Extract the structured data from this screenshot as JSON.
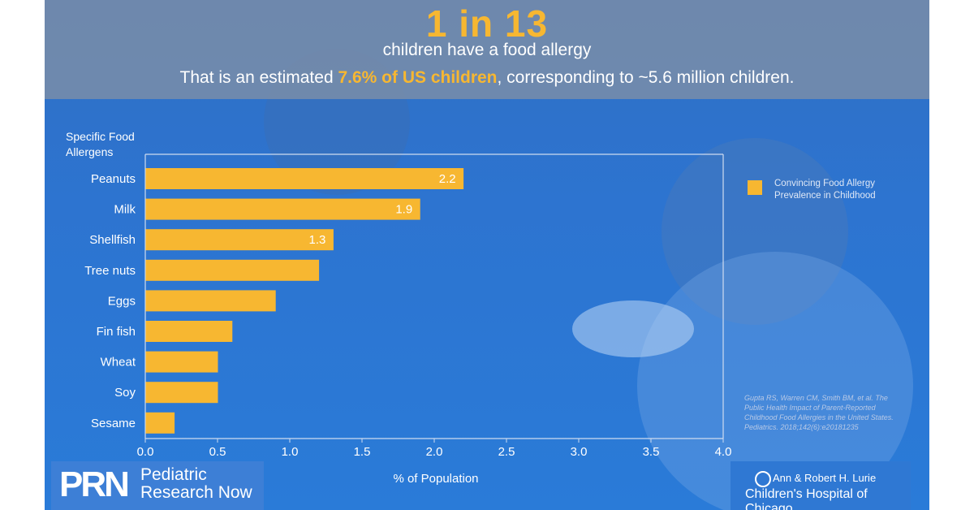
{
  "header": {
    "headline": "1 in 13",
    "subline": "children have a food allergy",
    "stat_prefix": "That is an estimated ",
    "stat_highlight": "7.6% of US children",
    "stat_suffix": ", corresponding to ~5.6 million children."
  },
  "colors": {
    "bar": "#f7b731",
    "accent": "#f7b731",
    "panel": "#2d74d0",
    "header_band": "#7f8ca8"
  },
  "chart_data": {
    "type": "bar",
    "orientation": "horizontal",
    "category_axis_title": [
      "Specific Food",
      "Allergens"
    ],
    "categories": [
      "Peanuts",
      "Milk",
      "Shellfish",
      "Tree nuts",
      "Eggs",
      "Fin fish",
      "Wheat",
      "Soy",
      "Sesame"
    ],
    "values": [
      2.2,
      1.9,
      1.3,
      1.2,
      0.9,
      0.6,
      0.5,
      0.5,
      0.2
    ],
    "data_labels": [
      "2.2",
      "1.9",
      "1.3",
      "",
      "",
      "",
      "",
      "",
      ""
    ],
    "xlabel": "% of Population",
    "xlim": [
      0,
      4.0
    ],
    "xticks": [
      "0.0",
      "0.5",
      "1.0",
      "1.5",
      "2.0",
      "2.5",
      "3.0",
      "3.5",
      "4.0"
    ],
    "legend": {
      "label": [
        "Convincing Food Allergy",
        "Prevalence in Childhood"
      ],
      "position": "right"
    },
    "grid": false
  },
  "citation": [
    "Gupta RS, Warren CM, Smith BM, et al. The",
    "Public Health Impact of Parent-Reported",
    "Childhood Food Allergies in the United States.",
    "Pediatrics. 2018;142(6):e20181235"
  ],
  "logos": {
    "prn_mark": "PRN",
    "prn_line1": "Pediatric",
    "prn_line2": "Research Now",
    "lurie_line1": "Ann & Robert H. Lurie",
    "lurie_line2": "Children's Hospital of Chicago"
  }
}
